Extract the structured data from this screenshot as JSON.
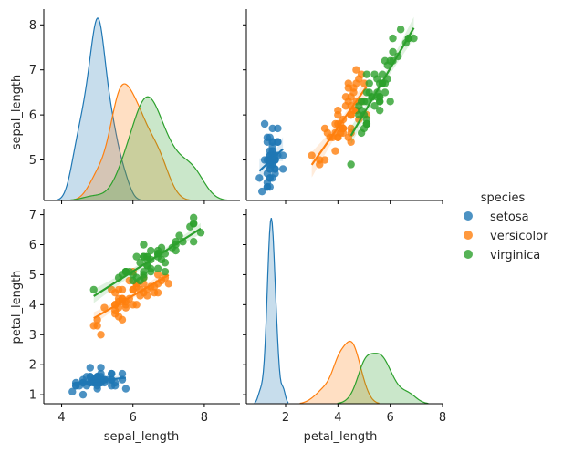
{
  "chart_data": {
    "type": "pairplot",
    "variables": [
      "sepal_length",
      "petal_length"
    ],
    "hue": "species",
    "legend": {
      "title": "species",
      "placement": "center-right",
      "entries": [
        {
          "label": "setosa",
          "color": "#1f77b4"
        },
        {
          "label": "versicolor",
          "color": "#ff7f0e"
        },
        {
          "label": "virginica",
          "color": "#2ca02c"
        }
      ]
    },
    "axes": {
      "sepal_length": {
        "label": "sepal_length",
        "lim": [
          3.5,
          9.0
        ],
        "ticks": [
          4,
          6,
          8
        ],
        "ylim": [
          4.1,
          8.35
        ],
        "yticks": [
          5,
          6,
          7,
          8
        ]
      },
      "petal_length": {
        "label": "petal_length",
        "lim": [
          0.5,
          8.0
        ],
        "ticks": [
          2,
          4,
          6,
          8
        ],
        "ylim": [
          0.7,
          7.2
        ],
        "yticks": [
          1,
          2,
          3,
          4,
          5,
          6,
          7
        ]
      }
    },
    "species": [
      {
        "name": "setosa",
        "color": "#1f77b4",
        "sepal_length": [
          5.1,
          4.9,
          4.7,
          4.6,
          5.0,
          5.4,
          4.6,
          5.0,
          4.4,
          4.9,
          5.4,
          4.8,
          4.8,
          4.3,
          5.8,
          5.7,
          5.4,
          5.1,
          5.7,
          5.1,
          5.4,
          5.1,
          4.6,
          5.1,
          4.8,
          5.0,
          5.0,
          5.2,
          5.2,
          4.7,
          4.8,
          5.4,
          5.2,
          5.5,
          4.9,
          5.0,
          5.5,
          4.9,
          4.4,
          5.1,
          5.0,
          4.5,
          4.4,
          5.0,
          5.1,
          4.8,
          5.1,
          4.6,
          5.3,
          5.0
        ],
        "petal_length": [
          1.4,
          1.4,
          1.3,
          1.5,
          1.4,
          1.7,
          1.4,
          1.5,
          1.4,
          1.5,
          1.5,
          1.6,
          1.4,
          1.1,
          1.2,
          1.5,
          1.3,
          1.4,
          1.7,
          1.5,
          1.7,
          1.5,
          1.0,
          1.7,
          1.9,
          1.6,
          1.6,
          1.5,
          1.4,
          1.6,
          1.6,
          1.5,
          1.5,
          1.4,
          1.5,
          1.2,
          1.3,
          1.4,
          1.3,
          1.5,
          1.3,
          1.3,
          1.3,
          1.6,
          1.9,
          1.4,
          1.6,
          1.4,
          1.5,
          1.4
        ]
      },
      {
        "name": "versicolor",
        "color": "#ff7f0e",
        "sepal_length": [
          7.0,
          6.4,
          6.9,
          5.5,
          6.5,
          5.7,
          6.3,
          4.9,
          6.6,
          5.2,
          5.0,
          5.9,
          6.0,
          6.1,
          5.6,
          6.7,
          5.6,
          5.8,
          6.2,
          5.6,
          5.9,
          6.1,
          6.3,
          6.1,
          6.4,
          6.6,
          6.8,
          6.7,
          6.0,
          5.7,
          5.5,
          5.5,
          5.8,
          6.0,
          5.4,
          6.0,
          6.7,
          6.3,
          5.6,
          5.5,
          5.5,
          6.1,
          5.8,
          5.0,
          5.6,
          5.7,
          5.7,
          6.2,
          5.1,
          5.7
        ],
        "petal_length": [
          4.7,
          4.5,
          4.9,
          4.0,
          4.6,
          4.5,
          4.7,
          3.3,
          4.6,
          3.9,
          3.5,
          4.2,
          4.0,
          4.7,
          3.6,
          4.4,
          4.5,
          4.1,
          4.5,
          3.9,
          4.8,
          4.0,
          4.9,
          4.7,
          4.3,
          4.4,
          4.8,
          5.0,
          4.5,
          3.5,
          3.8,
          3.7,
          3.9,
          5.1,
          4.5,
          4.5,
          4.7,
          4.4,
          4.1,
          4.0,
          4.4,
          4.6,
          4.0,
          3.3,
          4.2,
          4.2,
          4.2,
          4.3,
          3.0,
          4.1
        ]
      },
      {
        "name": "virginica",
        "color": "#2ca02c",
        "sepal_length": [
          6.3,
          5.8,
          7.1,
          6.3,
          6.5,
          7.6,
          4.9,
          7.3,
          6.7,
          7.2,
          6.5,
          6.4,
          6.8,
          5.7,
          5.8,
          6.4,
          6.5,
          7.7,
          7.7,
          6.0,
          6.9,
          5.6,
          7.7,
          6.3,
          6.7,
          7.2,
          6.2,
          6.1,
          6.4,
          7.2,
          7.4,
          7.9,
          6.4,
          6.3,
          6.1,
          7.7,
          6.3,
          6.4,
          6.0,
          6.9,
          6.7,
          6.9,
          5.8,
          6.8,
          6.7,
          6.7,
          6.3,
          6.5,
          6.2,
          5.9
        ],
        "petal_length": [
          6.0,
          5.1,
          5.9,
          5.6,
          5.8,
          6.6,
          4.5,
          6.3,
          5.8,
          6.1,
          5.1,
          5.3,
          5.5,
          5.0,
          5.1,
          5.3,
          5.5,
          6.7,
          6.9,
          5.0,
          5.7,
          4.9,
          6.7,
          4.9,
          5.7,
          6.0,
          4.8,
          4.9,
          5.6,
          5.8,
          6.1,
          6.4,
          5.6,
          5.1,
          5.6,
          6.1,
          5.6,
          5.5,
          4.8,
          5.4,
          5.6,
          5.1,
          5.1,
          5.9,
          5.7,
          5.2,
          5.0,
          5.2,
          5.4,
          5.1
        ]
      }
    ]
  }
}
